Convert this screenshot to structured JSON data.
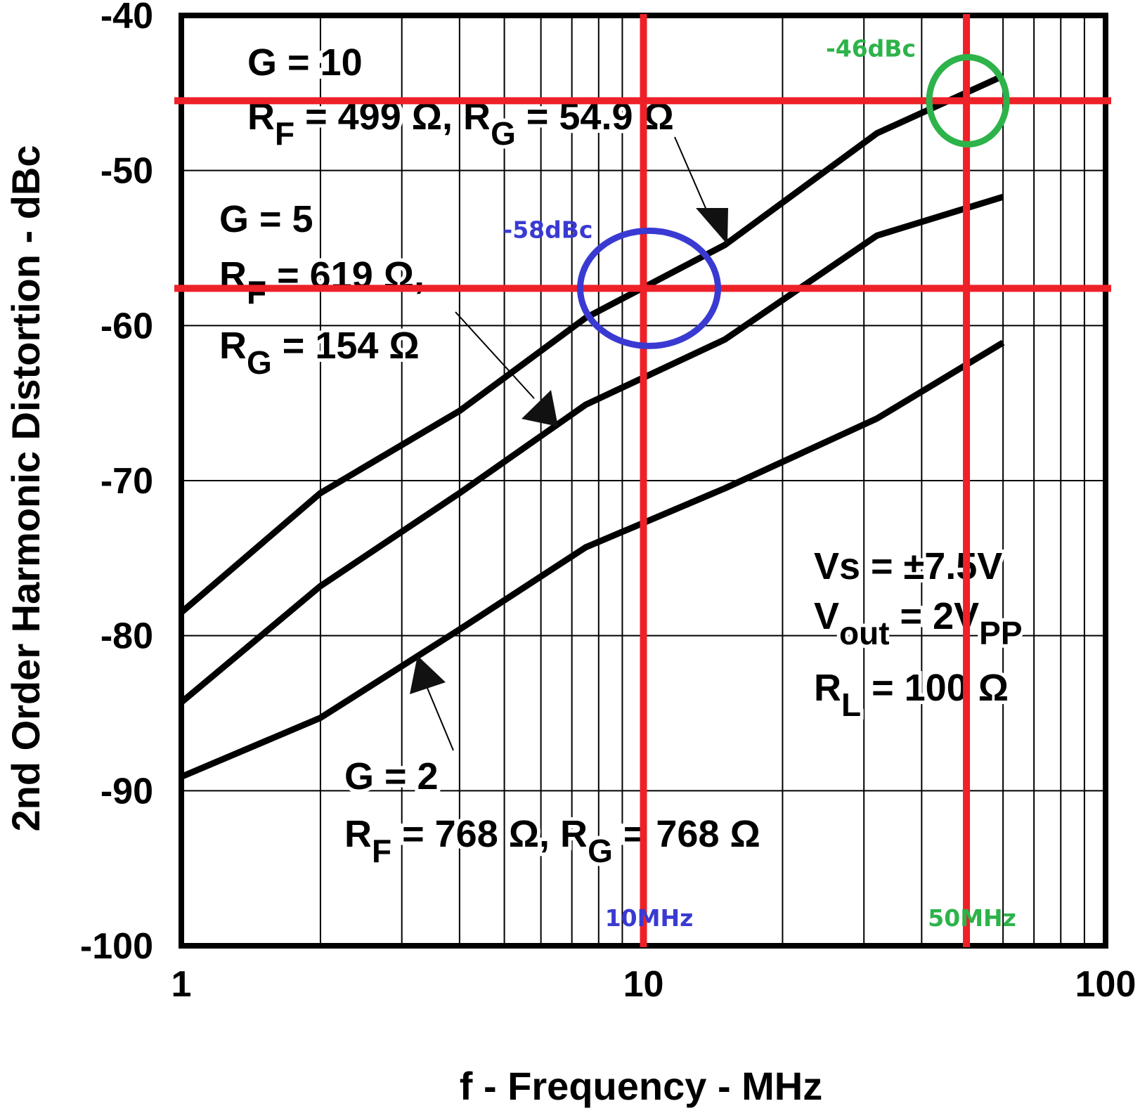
{
  "chart_data": {
    "type": "line",
    "title": "",
    "xlabel": "f - Frequency - MHz",
    "ylabel": "2nd Order Harmonic Distortion - dBc",
    "x_scale": "log",
    "xlim": [
      1,
      100
    ],
    "ylim": [
      -100,
      -40
    ],
    "x_ticks": [
      "1",
      "10",
      "100"
    ],
    "y_ticks": [
      "-40",
      "-50",
      "-60",
      "-70",
      "-80",
      "-90",
      "-100"
    ],
    "grid": true,
    "series": [
      {
        "name": "G = 10",
        "color": "#000000",
        "points": [
          [
            1,
            -78.5
          ],
          [
            2,
            -70.8
          ],
          [
            4,
            -65.5
          ],
          [
            7.5,
            -59.5
          ],
          [
            15,
            -54.8
          ],
          [
            32,
            -47.6
          ],
          [
            60,
            -43.9
          ]
        ]
      },
      {
        "name": "G = 5",
        "color": "#000000",
        "points": [
          [
            1,
            -84.3
          ],
          [
            2,
            -76.8
          ],
          [
            4,
            -70.8
          ],
          [
            7.5,
            -65.1
          ],
          [
            15,
            -60.9
          ],
          [
            32,
            -54.2
          ],
          [
            60,
            -51.7
          ]
        ]
      },
      {
        "name": "G = 2",
        "color": "#000000",
        "points": [
          [
            1,
            -89.1
          ],
          [
            2,
            -85.3
          ],
          [
            4,
            -79.6
          ],
          [
            7.5,
            -74.3
          ],
          [
            15,
            -70.5
          ],
          [
            32,
            -66
          ],
          [
            60,
            -61.1
          ]
        ]
      }
    ],
    "annotations": {
      "g10": {
        "gain": "G = 10",
        "rf_prefix": "R",
        "rf_sub": "F",
        "rf_rest": " = 499 Ω, R",
        "rg_sub": "G",
        "rg_rest": " = 54.9 Ω"
      },
      "g5": {
        "gain": "G = 5",
        "rf_prefix": "R",
        "rf_sub": "F",
        "rf_rest": " = 619 Ω,",
        "rg_prefix": "R",
        "rg_sub": "G",
        "rg_rest": " = 154 Ω"
      },
      "g2": {
        "gain": "G = 2",
        "rf_prefix": "R",
        "rf_sub": "F",
        "rf_rest": " = 768 Ω, R",
        "rg_sub": "G",
        "rg_rest": " = 768 Ω"
      },
      "conditions": {
        "vs": "Vs = ±7.5V",
        "vout_prefix": "V",
        "vout_sub": "out",
        "vout_mid": " = 2V",
        "vout_sub2": "PP",
        "rl_prefix": "R",
        "rl_sub": "L",
        "rl_rest": " = 100 Ω"
      }
    },
    "markers": [
      {
        "x": 10,
        "y": -57.6,
        "x_label": "10MHz",
        "y_label": "-58dBc",
        "color": "#3a3ad2"
      },
      {
        "x": 50,
        "y": -45.5,
        "x_label": "50MHz",
        "y_label": "-46dBc",
        "color": "#2db34a"
      }
    ],
    "reference_line_color": "#ee2028"
  }
}
